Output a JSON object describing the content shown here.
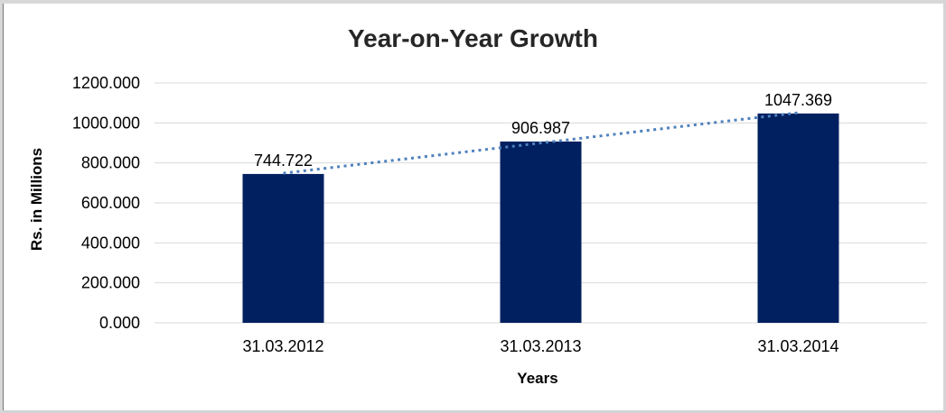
{
  "chart_data": {
    "type": "bar",
    "title": "Year-on-Year Growth",
    "categories": [
      "31.03.2012",
      "31.03.2013",
      "31.03.2014"
    ],
    "values": [
      744.722,
      906.987,
      1047.369
    ],
    "data_labels": [
      "744.722",
      "906.987",
      "1047.369"
    ],
    "xlabel": "Years",
    "ylabel": "Rs. in Millions",
    "ylim": [
      0,
      1200
    ],
    "ytick_values": [
      0,
      200,
      400,
      600,
      800,
      1000,
      1200
    ],
    "ytick_labels": [
      "0.000",
      "200.000",
      "400.000",
      "600.000",
      "800.000",
      "1000.000",
      "1200.000"
    ],
    "grid": true,
    "legend": "none",
    "series_color": "#002060",
    "gridline_color": "#d9d9d9",
    "text_color": "#000000",
    "title_color": "#262626",
    "trendline": {
      "type": "linear",
      "style": "dotted",
      "color": "#4f81bd"
    }
  }
}
